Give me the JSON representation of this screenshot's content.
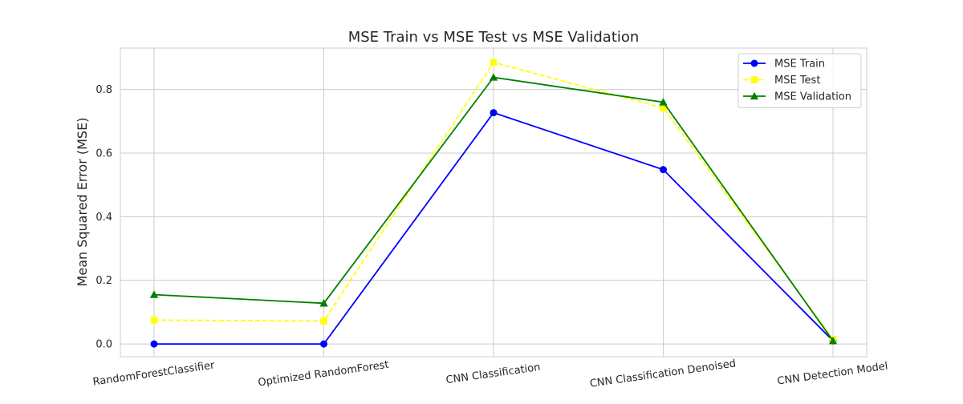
{
  "chart_data": {
    "type": "line",
    "title": "MSE Train vs MSE Test vs MSE Validation",
    "xlabel": "",
    "ylabel": "Mean Squared Error (MSE)",
    "categories": [
      "RandomForestClassifier",
      "Optimized RandomForest",
      "CNN Classification",
      "CNN Classification Denoised",
      "CNN Detection Model"
    ],
    "ylim": [
      -0.04,
      0.93
    ],
    "yticks": [
      0.0,
      0.2,
      0.4,
      0.6,
      0.8
    ],
    "ytick_labels": [
      "0.0",
      "0.2",
      "0.4",
      "0.6",
      "0.8"
    ],
    "grid": true,
    "legend_position": "top-right",
    "series": [
      {
        "name": "MSE Train",
        "values": [
          0.0,
          0.0,
          0.727,
          0.548,
          0.01
        ],
        "color": "#0000ff",
        "marker": "circle",
        "dash": "solid"
      },
      {
        "name": "MSE Test",
        "values": [
          0.075,
          0.072,
          0.885,
          0.742,
          0.015
        ],
        "color": "#ffff00",
        "marker": "square",
        "dash": "dashed"
      },
      {
        "name": "MSE Validation",
        "values": [
          0.155,
          0.128,
          0.838,
          0.76,
          0.01
        ],
        "color": "#008000",
        "marker": "triangle",
        "dash": "solid"
      }
    ]
  }
}
